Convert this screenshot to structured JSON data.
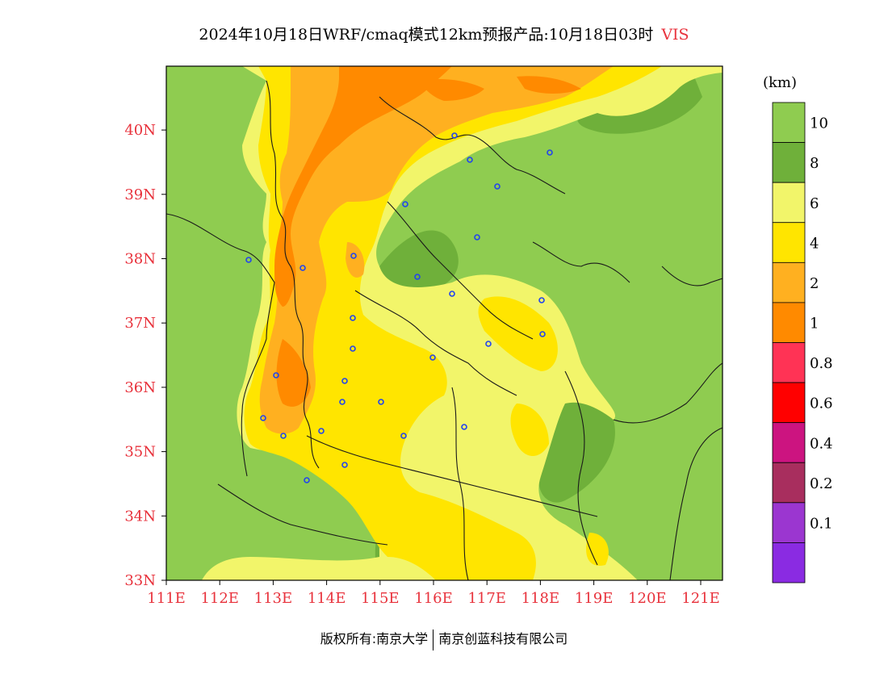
{
  "header": {
    "title": "2024年10月18日WRF/cmaq模式12km预报产品:10月18日03时",
    "variable": "VIS"
  },
  "map": {
    "lon_labels": [
      "111E",
      "112E",
      "113E",
      "114E",
      "115E",
      "116E",
      "117E",
      "118E",
      "119E",
      "120E",
      "121E"
    ],
    "lat_labels": [
      "33N",
      "34N",
      "35N",
      "36N",
      "37N",
      "38N",
      "39N",
      "40N"
    ],
    "colors": {
      "vis_gt10": "#8fcc50",
      "vis_8_10": "#6fb03a",
      "vis_6_8": "#f2f56a",
      "vis_4_6": "#ffe500",
      "vis_2_4": "#ffb020",
      "vis_1_2": "#ff8a00",
      "boundary": "#1a1a1a",
      "city_marker": "#2244ee"
    }
  },
  "colorbar": {
    "unit": "(km)",
    "labels": [
      "10",
      "8",
      "6",
      "4",
      "2",
      "1",
      "0.8",
      "0.6",
      "0.4",
      "0.2",
      "0.1"
    ],
    "colors": [
      "#8fcc50",
      "#6fb03a",
      "#f2f56a",
      "#ffe500",
      "#ffb020",
      "#ff8a00",
      "#ff3355",
      "#ff0000",
      "#cc1480",
      "#a82e5e",
      "#9b36d0",
      "#8a2be2"
    ]
  },
  "footer": {
    "left": "版权所有:南京大学",
    "right": "南京创蓝科技有限公司"
  }
}
